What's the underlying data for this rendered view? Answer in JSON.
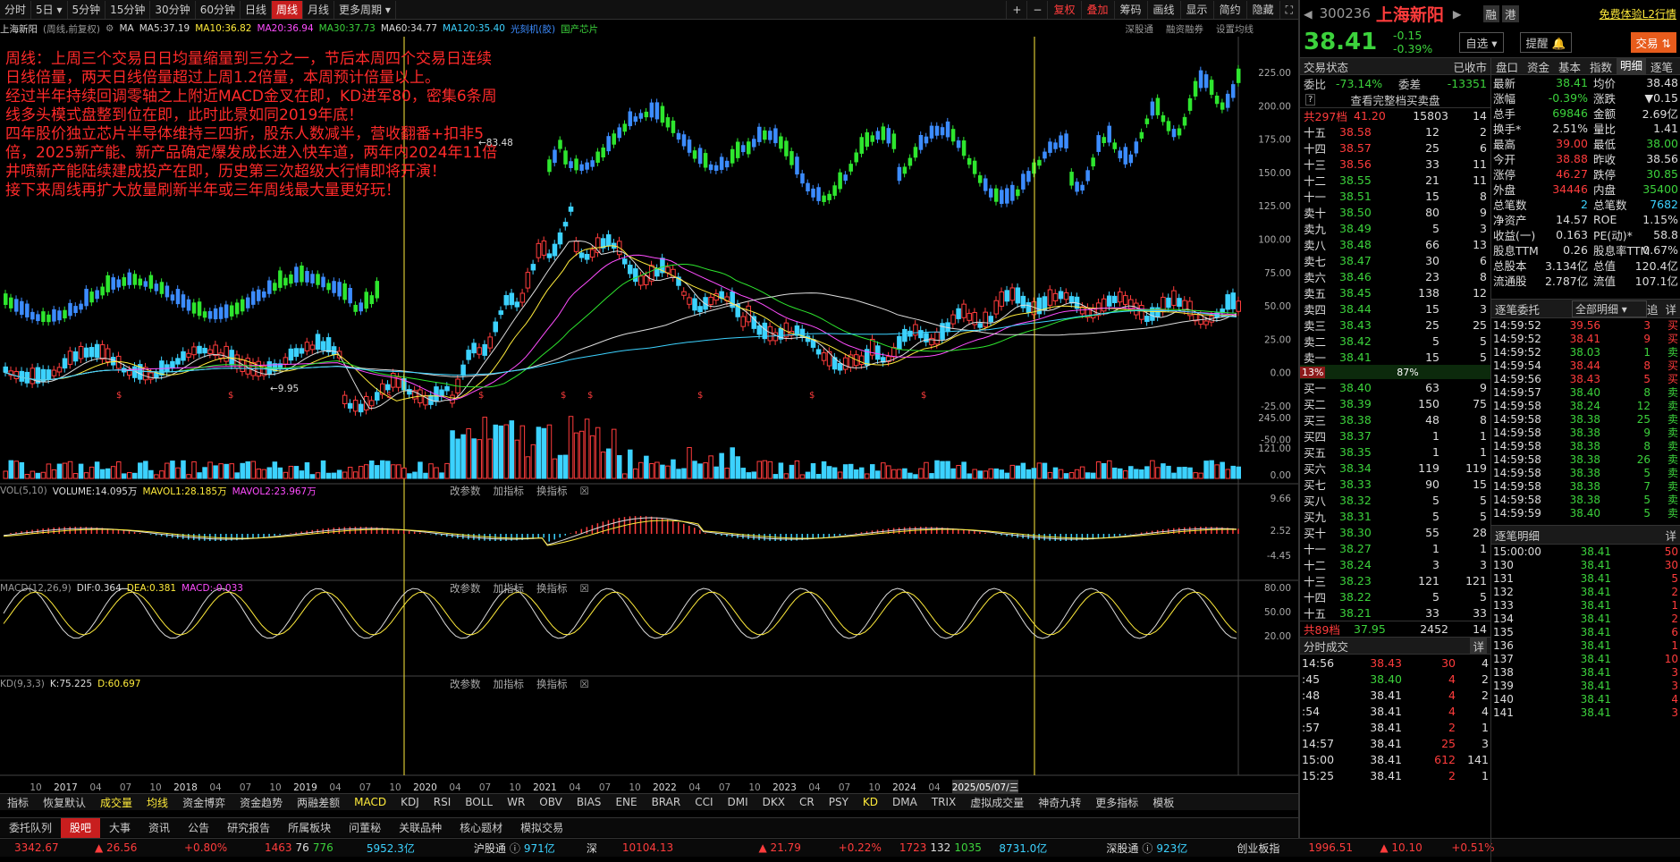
{
  "toolbar": {
    "periods": [
      "分时",
      "5日",
      "5分钟",
      "15分钟",
      "30分钟",
      "60分钟",
      "日线",
      "周线",
      "月线",
      "更多周期"
    ],
    "active": "周线",
    "right": [
      "复权",
      "叠加",
      "筹码",
      "画线",
      "显示",
      "简约",
      "隐藏"
    ]
  },
  "legend": {
    "name": "上海新阳",
    "mode": "(周线,前复权)",
    "ma": "MA",
    "ma5": "MA5:37.19",
    "ma10": "MA10:36.82",
    "ma20": "MA20:36.94",
    "ma30": "MA30:37.73",
    "ma60": "MA60:34.77",
    "ma120": "MA120:35.40",
    "tag1": "光刻机(胶)",
    "tag2": "国产芯片",
    "links": [
      "深股通",
      "融资融券",
      "设置均线"
    ]
  },
  "annotation": [
    "周线：上周三个交易日日均量缩量到三分之一，节后本周四个交易日连续日线倍量，两天日线倍量超过上周1.2倍量，本周预计倍量以上。",
    "经过半年持续回调零轴之上附近MACD金叉在即，KD进军80，密集6条周线多头模式盘整到位在即，此时此景如同2019年底！",
    "四年股价独立芯片半导体维持三四折，股东人数减半，营收翻番+扣非5倍，2025新产能、新产品确定爆发成长进入快车道，两年内2024年11倍井喷新产能陆续建成投产在即，历史第三次超级大行情即将开演！",
    "接下来周线再扩大放量刷新半年或三年周线最大量更好玩！"
  ],
  "chart_data": {
    "type": "candlestick",
    "price_axis": [
      "225.00",
      "200.00",
      "175.00",
      "150.00",
      "125.00",
      "100.00",
      "75.00",
      "50.00",
      "25.00",
      "0.00",
      "-25.00",
      "-50.00"
    ],
    "high_label": "83.48",
    "low_label": "9.95",
    "x_labels": [
      "10",
      "2017",
      "04",
      "07",
      "10",
      "2018",
      "04",
      "07",
      "10",
      "2019",
      "04",
      "07",
      "10",
      "2020",
      "04",
      "07",
      "10",
      "2021",
      "04",
      "07",
      "10",
      "2022",
      "04",
      "07",
      "10",
      "2023",
      "04",
      "07",
      "10",
      "2024",
      "04",
      "07"
    ],
    "date_box": "2025/05/07/三",
    "vol_axis": [
      "245.00",
      "121.00",
      "0.00"
    ],
    "macd_axis": [
      "9.66",
      "2.52",
      "-4.45"
    ],
    "kd_axis": [
      "80.00",
      "50.00",
      "20.00"
    ]
  },
  "vol": {
    "title": "VOL(5,10)",
    "volume": "VOLUME:14.095万",
    "mavol1": "MAVOL1:28.185万",
    "mavol2": "MAVOL2:23.967万"
  },
  "macd": {
    "title": "MACD(12,26,9)",
    "dif": "DIF:0.364",
    "dea": "DEA:0.381",
    "macd": "MACD:-0.033"
  },
  "kd": {
    "title": "KD(9,3,3)",
    "k": "K:75.225",
    "d": "D:60.697"
  },
  "panel_tools": [
    "改参数",
    "加指标",
    "换指标"
  ],
  "indicators": [
    "指标",
    "恢复默认",
    "成交量",
    "均线",
    "资金博弈",
    "资金趋势",
    "两融差额",
    "MACD",
    "KDJ",
    "RSI",
    "BOLL",
    "WR",
    "OBV",
    "BIAS",
    "ENE",
    "BRAR",
    "CCI",
    "DMI",
    "DKX",
    "CR",
    "PSY",
    "KD",
    "DMA",
    "TRIX",
    "虚拟成交量",
    "神奇九转",
    "更多指标",
    "模板"
  ],
  "footer_tabs": [
    "委托队列",
    "股吧",
    "大事",
    "资讯",
    "公告",
    "研究报告",
    "所属板块",
    "问董秘",
    "关联品种",
    "核心题材",
    "模拟交易"
  ],
  "ticker": {
    "sh": "3342.67",
    "sh_chg": "▲ 26.56",
    "sh_pct": "+0.80%",
    "sh_cnt": "1463",
    "sh_flat": "76",
    "sh_dn": "776",
    "sh_amt": "5952.3亿",
    "hgt": "沪股通",
    "hgt_v": "971亿",
    "sz_lbl": "深",
    "sz": "10104.13",
    "sz_chg": "▲ 21.79",
    "sz_pct": "+0.22%",
    "sz_cnt": "1723",
    "sz_flat": "132",
    "sz_dn": "1035",
    "sz_amt": "8731.0亿",
    "sgt": "深股通",
    "sgt_v": "923亿",
    "cyb": "创业板指",
    "cyb_v": "1996.51",
    "cyb_chg": "▲ 10.10",
    "cyb_pct": "+0.51%"
  },
  "stock": {
    "code": "300236",
    "name": "上海新阳",
    "rong": "融",
    "gang": "港",
    "promo": "免费体验L2行情",
    "price": "38.41",
    "chg": "-0.15",
    "pct": "-0.39%",
    "zixuan": "自选",
    "tixing": "提醒",
    "trade": "交易"
  },
  "status": {
    "label": "交易状态",
    "value": "已收市",
    "weibi_l": "委比",
    "weibi": "-73.14%",
    "weicha_l": "委差",
    "weicha": "-13351",
    "full": "查看完整档买卖盘",
    "total_top": "共297档",
    "tt_price": "41.20",
    "tt_vol": "15803",
    "tt_n": "14",
    "total_bot": "共89档",
    "tb_price": "37.95",
    "tb_vol": "2452",
    "tb_n": "14",
    "bar_left": "13%",
    "bar_right": "87%"
  },
  "asks": [
    [
      "十五",
      "38.58",
      "12",
      "2"
    ],
    [
      "十四",
      "38.57",
      "25",
      "6"
    ],
    [
      "十三",
      "38.56",
      "33",
      "11"
    ],
    [
      "十二",
      "38.55",
      "21",
      "11"
    ],
    [
      "十一",
      "38.51",
      "15",
      "8"
    ],
    [
      "卖十",
      "38.50",
      "80",
      "9"
    ],
    [
      "卖九",
      "38.49",
      "5",
      "3"
    ],
    [
      "卖八",
      "38.48",
      "66",
      "13"
    ],
    [
      "卖七",
      "38.47",
      "30",
      "6"
    ],
    [
      "卖六",
      "38.46",
      "23",
      "8"
    ],
    [
      "卖五",
      "38.45",
      "138",
      "12"
    ],
    [
      "卖四",
      "38.44",
      "15",
      "3"
    ],
    [
      "卖三",
      "38.43",
      "25",
      "25"
    ],
    [
      "卖二",
      "38.42",
      "5",
      "5"
    ],
    [
      "卖一",
      "38.41",
      "15",
      "5"
    ]
  ],
  "bids": [
    [
      "买一",
      "38.40",
      "63",
      "9"
    ],
    [
      "买二",
      "38.39",
      "150",
      "75"
    ],
    [
      "买三",
      "38.38",
      "48",
      "8"
    ],
    [
      "买四",
      "38.37",
      "1",
      "1"
    ],
    [
      "买五",
      "38.35",
      "1",
      "1"
    ],
    [
      "买六",
      "38.34",
      "119",
      "119"
    ],
    [
      "买七",
      "38.33",
      "90",
      "15"
    ],
    [
      "买八",
      "38.32",
      "5",
      "5"
    ],
    [
      "买九",
      "38.31",
      "5",
      "5"
    ],
    [
      "买十",
      "38.30",
      "55",
      "28"
    ],
    [
      "十一",
      "38.27",
      "1",
      "1"
    ],
    [
      "十二",
      "38.24",
      "3",
      "3"
    ],
    [
      "十三",
      "38.23",
      "121",
      "121"
    ],
    [
      "十四",
      "38.22",
      "5",
      "5"
    ],
    [
      "十五",
      "38.21",
      "33",
      "33"
    ]
  ],
  "fenshi": {
    "title": "分时成交",
    "detail": "详",
    "rows": [
      [
        "14:56",
        "38.43",
        "30",
        "4"
      ],
      [
        ":45",
        "38.40",
        "4",
        "2"
      ],
      [
        ":48",
        "38.41",
        "4",
        "2"
      ],
      [
        ":54",
        "38.41",
        "4",
        "4"
      ],
      [
        ":57",
        "38.41",
        "2",
        "1"
      ],
      [
        "14:57",
        "38.41",
        "25",
        "3"
      ],
      [
        "15:00",
        "38.41",
        "612",
        "141"
      ],
      [
        "15:25",
        "38.41",
        "2",
        "1"
      ]
    ]
  },
  "tabs": [
    "盘口",
    "资金",
    "基本",
    "指数",
    "明细",
    "逐笔"
  ],
  "pankou": [
    [
      "最新",
      "38.41",
      "均价",
      "38.48"
    ],
    [
      "涨幅",
      "-0.39%",
      "涨跌",
      "▼0.15"
    ],
    [
      "总手",
      "69846",
      "金额",
      "2.69亿"
    ],
    [
      "换手*",
      "2.51%",
      "量比",
      "1.41"
    ],
    [
      "最高",
      "39.00",
      "最低",
      "38.00"
    ],
    [
      "今开",
      "38.88",
      "昨收",
      "38.56"
    ],
    [
      "涨停",
      "46.27",
      "跌停",
      "30.85"
    ],
    [
      "外盘",
      "34446",
      "内盘",
      "35400"
    ],
    [
      "总笔数",
      "2",
      "总笔数",
      "7682"
    ],
    [
      "净资产",
      "14.57",
      "ROE",
      "1.15%"
    ],
    [
      "收益(一)",
      "0.163",
      "PE(动)*",
      "58.8"
    ],
    [
      "股息TTM",
      "0.26",
      "股息率TTM",
      "0.67%"
    ],
    [
      "总股本",
      "3.134亿",
      "总值",
      "120.4亿"
    ],
    [
      "流通股",
      "2.787亿",
      "流值",
      "107.1亿"
    ]
  ],
  "zhubi": {
    "title": "逐笔委托",
    "filter": "全部明细",
    "zhui": "追",
    "xiang": "详",
    "rows": [
      [
        "14:59:52",
        "39.56",
        "3",
        "买"
      ],
      [
        "14:59:52",
        "38.41",
        "9",
        "买"
      ],
      [
        "14:59:52",
        "38.03",
        "1",
        "卖"
      ],
      [
        "14:59:54",
        "38.44",
        "8",
        "买"
      ],
      [
        "14:59:56",
        "38.43",
        "5",
        "买"
      ],
      [
        "14:59:57",
        "38.40",
        "8",
        "卖"
      ],
      [
        "14:59:58",
        "38.24",
        "12",
        "卖"
      ],
      [
        "14:59:58",
        "38.38",
        "25",
        "卖"
      ],
      [
        "14:59:58",
        "38.38",
        "9",
        "卖"
      ],
      [
        "14:59:58",
        "38.38",
        "8",
        "卖"
      ],
      [
        "14:59:58",
        "38.38",
        "26",
        "卖"
      ],
      [
        "14:59:58",
        "38.38",
        "5",
        "卖"
      ],
      [
        "14:59:58",
        "38.38",
        "7",
        "卖"
      ],
      [
        "14:59:58",
        "38.38",
        "5",
        "卖"
      ],
      [
        "14:59:59",
        "38.40",
        "5",
        "卖"
      ]
    ]
  },
  "mingxi": {
    "title": "逐笔明细",
    "xiang": "详",
    "rows": [
      [
        "15:00:00",
        "38.41",
        "50"
      ],
      [
        "130",
        "38.41",
        "30"
      ],
      [
        "131",
        "38.41",
        "5"
      ],
      [
        "132",
        "38.41",
        "2"
      ],
      [
        "133",
        "38.41",
        "1"
      ],
      [
        "134",
        "38.41",
        "2"
      ],
      [
        "135",
        "38.41",
        "6"
      ],
      [
        "136",
        "38.41",
        "1"
      ],
      [
        "137",
        "38.41",
        "10"
      ],
      [
        "138",
        "38.41",
        "3"
      ],
      [
        "139",
        "38.41",
        "3"
      ],
      [
        "140",
        "38.41",
        "4"
      ],
      [
        "141",
        "38.41",
        "3"
      ]
    ]
  }
}
